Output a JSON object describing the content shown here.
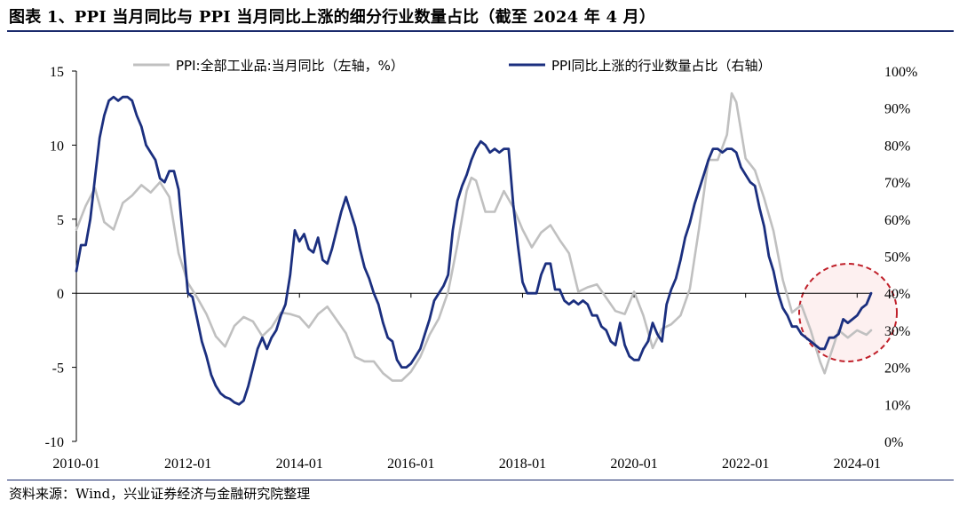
{
  "title": "图表 1、PPI 当月同比与 PPI 当月同比上涨的细分行业数量占比（截至 2024 年 4 月）",
  "source": "资料来源：Wind，兴业证券经济与金融研究院整理",
  "colors": {
    "ppi_yoy": "#c0c0c0",
    "share_up": "#1b2f7f",
    "highlight_circle": "#c0202a",
    "highlight_fill": "#fdf0f0"
  },
  "chart_data": {
    "type": "line",
    "title": "",
    "x_ticks": [
      "2010-01",
      "2012-01",
      "2014-01",
      "2016-01",
      "2018-01",
      "2020-01",
      "2022-01",
      "2024-01"
    ],
    "x_range": [
      "2010-01",
      "2024-04"
    ],
    "y_left": {
      "range": [
        -10,
        15
      ],
      "ticks": [
        "-10",
        "-5",
        "0",
        "5",
        "10",
        "15"
      ]
    },
    "y_right": {
      "range": [
        0,
        100
      ],
      "unit": "%",
      "ticks": [
        "0%",
        "10%",
        "20%",
        "30%",
        "40%",
        "50%",
        "60%",
        "70%",
        "80%",
        "90%",
        "100%"
      ]
    },
    "grid": false,
    "legend_position": "top",
    "series": [
      {
        "name": "PPI:全部工业品:当月同比（左轴，%）",
        "axis": "left",
        "points": [
          [
            "2010-01",
            4.3
          ],
          [
            "2010-03",
            5.9
          ],
          [
            "2010-05",
            7.1
          ],
          [
            "2010-07",
            4.8
          ],
          [
            "2010-09",
            4.3
          ],
          [
            "2010-11",
            6.1
          ],
          [
            "2011-01",
            6.6
          ],
          [
            "2011-03",
            7.3
          ],
          [
            "2011-05",
            6.8
          ],
          [
            "2011-07",
            7.5
          ],
          [
            "2011-09",
            6.5
          ],
          [
            "2011-11",
            2.7
          ],
          [
            "2012-01",
            0.7
          ],
          [
            "2012-03",
            -0.3
          ],
          [
            "2012-05",
            -1.4
          ],
          [
            "2012-07",
            -2.9
          ],
          [
            "2012-09",
            -3.6
          ],
          [
            "2012-11",
            -2.2
          ],
          [
            "2013-01",
            -1.6
          ],
          [
            "2013-03",
            -1.9
          ],
          [
            "2013-05",
            -2.9
          ],
          [
            "2013-07",
            -2.3
          ],
          [
            "2013-09",
            -1.3
          ],
          [
            "2013-11",
            -1.4
          ],
          [
            "2014-01",
            -1.6
          ],
          [
            "2014-03",
            -2.3
          ],
          [
            "2014-05",
            -1.4
          ],
          [
            "2014-07",
            -0.9
          ],
          [
            "2014-09",
            -1.8
          ],
          [
            "2014-11",
            -2.7
          ],
          [
            "2015-01",
            -4.3
          ],
          [
            "2015-03",
            -4.6
          ],
          [
            "2015-05",
            -4.6
          ],
          [
            "2015-07",
            -5.4
          ],
          [
            "2015-09",
            -5.9
          ],
          [
            "2015-11",
            -5.9
          ],
          [
            "2016-01",
            -5.3
          ],
          [
            "2016-03",
            -4.3
          ],
          [
            "2016-05",
            -2.8
          ],
          [
            "2016-07",
            -1.7
          ],
          [
            "2016-09",
            0.1
          ],
          [
            "2016-11",
            3.3
          ],
          [
            "2017-01",
            6.9
          ],
          [
            "2017-02",
            7.8
          ],
          [
            "2017-03",
            7.6
          ],
          [
            "2017-05",
            5.5
          ],
          [
            "2017-07",
            5.5
          ],
          [
            "2017-09",
            6.9
          ],
          [
            "2017-11",
            5.8
          ],
          [
            "2018-01",
            4.3
          ],
          [
            "2018-03",
            3.1
          ],
          [
            "2018-05",
            4.1
          ],
          [
            "2018-07",
            4.6
          ],
          [
            "2018-09",
            3.6
          ],
          [
            "2018-11",
            2.7
          ],
          [
            "2019-01",
            0.1
          ],
          [
            "2019-03",
            0.4
          ],
          [
            "2019-05",
            0.6
          ],
          [
            "2019-07",
            -0.3
          ],
          [
            "2019-09",
            -1.2
          ],
          [
            "2019-11",
            -1.4
          ],
          [
            "2020-01",
            0.1
          ],
          [
            "2020-03",
            -1.5
          ],
          [
            "2020-05",
            -3.7
          ],
          [
            "2020-07",
            -2.4
          ],
          [
            "2020-09",
            -2.1
          ],
          [
            "2020-11",
            -1.5
          ],
          [
            "2021-01",
            0.3
          ],
          [
            "2021-03",
            4.4
          ],
          [
            "2021-05",
            9.0
          ],
          [
            "2021-07",
            9.0
          ],
          [
            "2021-09",
            10.7
          ],
          [
            "2021-10",
            13.5
          ],
          [
            "2021-11",
            12.9
          ],
          [
            "2022-01",
            9.1
          ],
          [
            "2022-03",
            8.3
          ],
          [
            "2022-05",
            6.4
          ],
          [
            "2022-07",
            4.2
          ],
          [
            "2022-09",
            0.9
          ],
          [
            "2022-11",
            -1.3
          ],
          [
            "2023-01",
            -0.8
          ],
          [
            "2023-03",
            -2.5
          ],
          [
            "2023-05",
            -4.6
          ],
          [
            "2023-06",
            -5.4
          ],
          [
            "2023-07",
            -4.4
          ],
          [
            "2023-09",
            -2.5
          ],
          [
            "2023-11",
            -3.0
          ],
          [
            "2024-01",
            -2.5
          ],
          [
            "2024-03",
            -2.8
          ],
          [
            "2024-04",
            -2.5
          ]
        ]
      },
      {
        "name": "PPI同比上涨的行业数量占比（右轴）",
        "axis": "right",
        "points": [
          [
            "2010-01",
            46
          ],
          [
            "2010-02",
            53
          ],
          [
            "2010-03",
            53
          ],
          [
            "2010-04",
            60
          ],
          [
            "2010-05",
            71
          ],
          [
            "2010-06",
            82
          ],
          [
            "2010-07",
            88
          ],
          [
            "2010-08",
            92
          ],
          [
            "2010-09",
            93
          ],
          [
            "2010-10",
            92
          ],
          [
            "2010-11",
            93
          ],
          [
            "2010-12",
            93
          ],
          [
            "2011-01",
            92
          ],
          [
            "2011-02",
            88
          ],
          [
            "2011-03",
            85
          ],
          [
            "2011-04",
            80
          ],
          [
            "2011-05",
            78
          ],
          [
            "2011-06",
            76
          ],
          [
            "2011-07",
            71
          ],
          [
            "2011-08",
            70
          ],
          [
            "2011-09",
            73
          ],
          [
            "2011-10",
            73
          ],
          [
            "2011-11",
            68
          ],
          [
            "2011-12",
            54
          ],
          [
            "2012-01",
            40
          ],
          [
            "2012-02",
            39
          ],
          [
            "2012-03",
            33
          ],
          [
            "2012-04",
            27
          ],
          [
            "2012-05",
            23
          ],
          [
            "2012-06",
            18
          ],
          [
            "2012-07",
            15
          ],
          [
            "2012-08",
            13
          ],
          [
            "2012-09",
            12
          ],
          [
            "2012-10",
            11.5
          ],
          [
            "2012-11",
            10.5
          ],
          [
            "2012-12",
            10
          ],
          [
            "2013-01",
            11
          ],
          [
            "2013-02",
            15
          ],
          [
            "2013-03",
            20
          ],
          [
            "2013-04",
            25
          ],
          [
            "2013-05",
            28
          ],
          [
            "2013-06",
            25
          ],
          [
            "2013-07",
            28
          ],
          [
            "2013-08",
            30
          ],
          [
            "2013-09",
            34
          ],
          [
            "2013-10",
            37
          ],
          [
            "2013-11",
            45
          ],
          [
            "2013-12",
            57
          ],
          [
            "2014-01",
            54
          ],
          [
            "2014-02",
            56
          ],
          [
            "2014-03",
            52
          ],
          [
            "2014-04",
            51
          ],
          [
            "2014-05",
            55
          ],
          [
            "2014-06",
            49
          ],
          [
            "2014-07",
            48
          ],
          [
            "2014-08",
            52
          ],
          [
            "2014-09",
            57
          ],
          [
            "2014-10",
            62
          ],
          [
            "2014-11",
            66
          ],
          [
            "2014-12",
            62
          ],
          [
            "2015-01",
            58
          ],
          [
            "2015-02",
            52
          ],
          [
            "2015-03",
            47
          ],
          [
            "2015-04",
            44
          ],
          [
            "2015-05",
            40
          ],
          [
            "2015-06",
            37
          ],
          [
            "2015-07",
            32
          ],
          [
            "2015-08",
            28
          ],
          [
            "2015-09",
            27
          ],
          [
            "2015-10",
            22
          ],
          [
            "2015-11",
            20
          ],
          [
            "2015-12",
            20
          ],
          [
            "2016-01",
            21
          ],
          [
            "2016-02",
            23
          ],
          [
            "2016-03",
            25
          ],
          [
            "2016-04",
            29
          ],
          [
            "2016-05",
            33
          ],
          [
            "2016-06",
            38
          ],
          [
            "2016-07",
            40
          ],
          [
            "2016-08",
            42
          ],
          [
            "2016-09",
            45
          ],
          [
            "2016-10",
            57
          ],
          [
            "2016-11",
            65
          ],
          [
            "2016-12",
            69
          ],
          [
            "2017-01",
            72
          ],
          [
            "2017-02",
            76
          ],
          [
            "2017-03",
            79
          ],
          [
            "2017-04",
            81
          ],
          [
            "2017-05",
            80
          ],
          [
            "2017-06",
            78
          ],
          [
            "2017-07",
            79
          ],
          [
            "2017-08",
            78
          ],
          [
            "2017-09",
            79
          ],
          [
            "2017-10",
            79
          ],
          [
            "2017-11",
            64
          ],
          [
            "2017-12",
            53
          ],
          [
            "2018-01",
            43
          ],
          [
            "2018-02",
            40
          ],
          [
            "2018-03",
            40
          ],
          [
            "2018-04",
            40
          ],
          [
            "2018-05",
            45
          ],
          [
            "2018-06",
            48
          ],
          [
            "2018-07",
            48
          ],
          [
            "2018-08",
            41
          ],
          [
            "2018-09",
            41
          ],
          [
            "2018-10",
            38
          ],
          [
            "2018-11",
            37
          ],
          [
            "2018-12",
            38
          ],
          [
            "2019-01",
            37
          ],
          [
            "2019-02",
            38
          ],
          [
            "2019-03",
            37
          ],
          [
            "2019-04",
            34
          ],
          [
            "2019-05",
            34
          ],
          [
            "2019-06",
            31
          ],
          [
            "2019-07",
            30
          ],
          [
            "2019-08",
            27
          ],
          [
            "2019-09",
            26
          ],
          [
            "2019-10",
            32
          ],
          [
            "2019-11",
            26
          ],
          [
            "2019-12",
            23
          ],
          [
            "2020-01",
            22
          ],
          [
            "2020-02",
            22
          ],
          [
            "2020-03",
            25
          ],
          [
            "2020-04",
            27
          ],
          [
            "2020-05",
            32
          ],
          [
            "2020-06",
            29
          ],
          [
            "2020-07",
            27
          ],
          [
            "2020-08",
            37
          ],
          [
            "2020-09",
            41
          ],
          [
            "2020-10",
            44
          ],
          [
            "2020-11",
            49
          ],
          [
            "2020-12",
            55
          ],
          [
            "2021-01",
            59
          ],
          [
            "2021-02",
            64
          ],
          [
            "2021-03",
            68
          ],
          [
            "2021-04",
            72
          ],
          [
            "2021-05",
            76
          ],
          [
            "2021-06",
            79
          ],
          [
            "2021-07",
            79
          ],
          [
            "2021-08",
            78
          ],
          [
            "2021-09",
            79
          ],
          [
            "2021-10",
            79
          ],
          [
            "2021-11",
            78
          ],
          [
            "2021-12",
            74
          ],
          [
            "2022-01",
            72
          ],
          [
            "2022-02",
            70
          ],
          [
            "2022-03",
            69
          ],
          [
            "2022-04",
            63
          ],
          [
            "2022-05",
            58
          ],
          [
            "2022-06",
            50
          ],
          [
            "2022-07",
            46
          ],
          [
            "2022-08",
            40
          ],
          [
            "2022-09",
            36
          ],
          [
            "2022-10",
            34
          ],
          [
            "2022-11",
            31
          ],
          [
            "2022-12",
            31
          ],
          [
            "2023-01",
            29
          ],
          [
            "2023-02",
            28
          ],
          [
            "2023-03",
            27
          ],
          [
            "2023-04",
            26
          ],
          [
            "2023-05",
            25
          ],
          [
            "2023-06",
            25
          ],
          [
            "2023-07",
            28
          ],
          [
            "2023-08",
            28
          ],
          [
            "2023-09",
            29
          ],
          [
            "2023-10",
            33
          ],
          [
            "2023-11",
            32
          ],
          [
            "2023-12",
            33
          ],
          [
            "2024-01",
            34
          ],
          [
            "2024-02",
            36
          ],
          [
            "2024-03",
            37
          ],
          [
            "2024-04",
            40
          ]
        ]
      }
    ]
  }
}
